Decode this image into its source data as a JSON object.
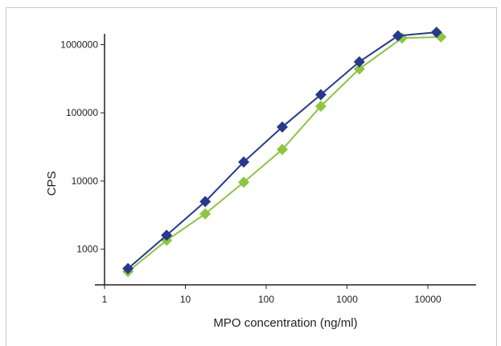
{
  "chart_data": {
    "type": "line",
    "xscale": "log",
    "yscale": "log",
    "xlim": [
      1,
      30000
    ],
    "ylim": [
      300,
      2000000
    ],
    "xlabel": "MPO concentration (ng/ml)",
    "ylabel": "CPS",
    "xticks": [
      "1",
      "10",
      "100",
      "1000",
      "10000"
    ],
    "yticks": [
      "1000",
      "10000",
      "100000",
      "1000000"
    ],
    "grid": false,
    "series": [
      {
        "color": "#26398f",
        "marker": "diamond",
        "x": [
          1.95,
          5.86,
          17.6,
          52.7,
          158,
          474,
          1420,
          4270,
          12800
        ],
        "y": [
          520,
          1600,
          5000,
          19000,
          62000,
          185000,
          560000,
          1350000,
          1520000
        ]
      },
      {
        "color": "#8dc63f",
        "marker": "diamond",
        "x": [
          1.95,
          5.86,
          17.6,
          52.7,
          158,
          474,
          1420,
          4800,
          14500
        ],
        "y": [
          470,
          1350,
          3300,
          9600,
          29000,
          125000,
          440000,
          1250000,
          1300000
        ]
      }
    ]
  }
}
